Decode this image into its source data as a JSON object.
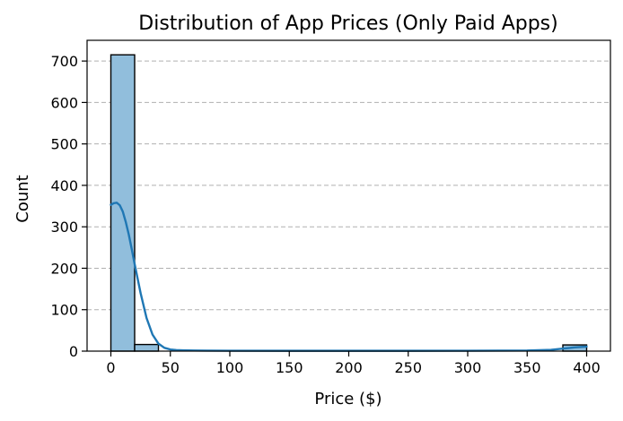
{
  "chart_data": {
    "type": "bar",
    "title": "Distribution of App Prices (Only Paid Apps)",
    "xlabel": "Price ($)",
    "ylabel": "Count",
    "xlim": [
      -20,
      420
    ],
    "ylim": [
      0,
      750
    ],
    "x_ticks": [
      "0",
      "50",
      "100",
      "150",
      "200",
      "250",
      "300",
      "350",
      "400"
    ],
    "y_ticks": [
      "0",
      "100",
      "200",
      "300",
      "400",
      "500",
      "600",
      "700"
    ],
    "grid": "y-dashed",
    "bin_width": 20,
    "bins": [
      {
        "start": 0,
        "end": 20,
        "count": 715
      },
      {
        "start": 20,
        "end": 40,
        "count": 16
      },
      {
        "start": 380,
        "end": 400,
        "count": 15
      }
    ],
    "kde": {
      "x": [
        0,
        2.5,
        5,
        7.5,
        10,
        12.5,
        15,
        17.5,
        20,
        25,
        30,
        35,
        40,
        45,
        50,
        55,
        60,
        70,
        80,
        100,
        150,
        200,
        250,
        300,
        350,
        370,
        380,
        390,
        400
      ],
      "y": [
        353,
        357,
        358,
        352,
        337,
        312,
        282,
        247,
        210,
        140,
        80,
        40,
        18,
        8,
        4,
        2.5,
        2,
        1.5,
        1.2,
        1,
        0.8,
        0.8,
        0.8,
        1,
        1.5,
        3,
        6,
        9,
        11
      ]
    },
    "colors": {
      "bar_fill": "#91bedc",
      "bar_edge": "#000000",
      "kde_line": "#1f77b4",
      "grid": "#b0b0b0"
    }
  }
}
